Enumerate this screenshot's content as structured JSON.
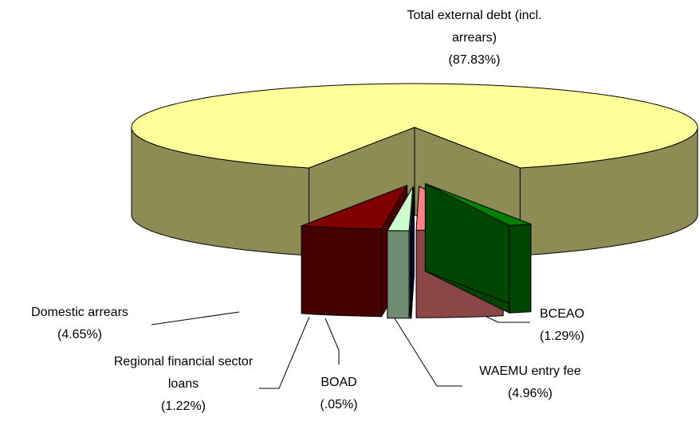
{
  "chart_data": {
    "type": "pie",
    "categories": [
      "Total external debt (incl. arrears)",
      "Domestic arrears",
      "Regional financial sector loans",
      "BOAD",
      "WAEMU entry fee",
      "BCEAO"
    ],
    "values": [
      87.83,
      4.65,
      1.22,
      0.05,
      4.96,
      1.29
    ],
    "value_labels": [
      "(87.83%)",
      "(4.65%)",
      "(1.22%)",
      "(.05%)",
      "(4.96%)",
      "(1.29%)"
    ],
    "colors": [
      "#ffff99",
      "#800000",
      "#ccffcc",
      "#000080",
      "#ff8080",
      "#008000"
    ]
  }
}
